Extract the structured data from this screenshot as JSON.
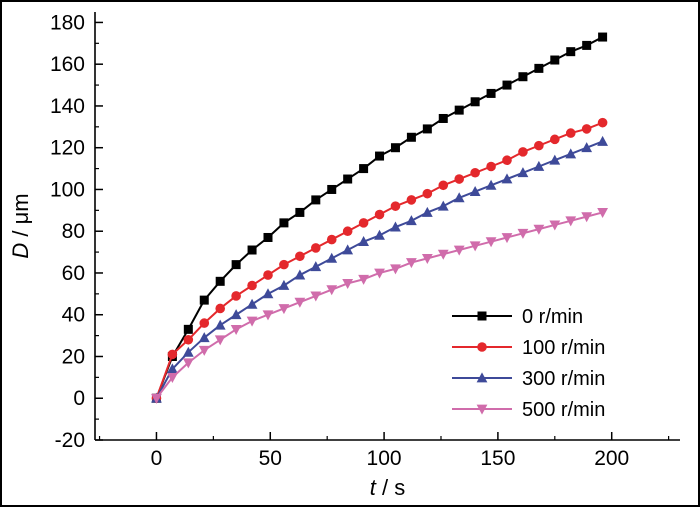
{
  "figure": {
    "background": "#ffffff",
    "border_color": "#000000"
  },
  "chart_data": {
    "type": "line",
    "title": "",
    "xlabel": "t / s",
    "xlabel_var": "t",
    "xlabel_unit": " / s",
    "ylabel": "D / μm",
    "ylabel_var": "D",
    "ylabel_unit": " / μm",
    "xlim": [
      -27,
      230
    ],
    "ylim": [
      -20,
      185
    ],
    "x_ticks": [
      0,
      50,
      100,
      150,
      200
    ],
    "y_ticks": [
      -20,
      0,
      20,
      40,
      60,
      80,
      100,
      120,
      140,
      160,
      180
    ],
    "grid": false,
    "legend_position": "inside-lower-right",
    "x": [
      0,
      7,
      14,
      21,
      28,
      35,
      42,
      49,
      56,
      63,
      70,
      77,
      84,
      91,
      98,
      105,
      112,
      119,
      126,
      133,
      140,
      147,
      154,
      161,
      168,
      175,
      182,
      189,
      196
    ],
    "series": [
      {
        "name": "0 r/min",
        "marker": "square",
        "color": "#000000",
        "values": [
          0,
          20,
          33,
          47,
          56,
          64,
          71,
          77,
          84,
          89,
          95,
          100,
          105,
          110,
          116,
          120,
          125,
          129,
          134,
          138,
          142,
          146,
          150,
          154,
          158,
          162,
          166,
          169,
          173
        ]
      },
      {
        "name": "100 r/min",
        "marker": "circle",
        "color": "#e4282c",
        "values": [
          0,
          21,
          28,
          36,
          43,
          49,
          54,
          59,
          64,
          68,
          72,
          76,
          80,
          84,
          88,
          92,
          95,
          98,
          102,
          105,
          108,
          111,
          114,
          118,
          121,
          124,
          127,
          129,
          132
        ]
      },
      {
        "name": "300 r/min",
        "marker": "triangle-up",
        "color": "#3e4a99",
        "values": [
          0,
          14,
          22,
          29,
          35,
          40,
          45,
          50,
          54,
          59,
          63,
          67,
          71,
          75,
          78,
          82,
          85,
          89,
          92,
          96,
          99,
          102,
          105,
          108,
          111,
          114,
          117,
          120,
          123
        ]
      },
      {
        "name": "500 r/min",
        "marker": "triangle-down",
        "color": "#d06cab",
        "values": [
          0,
          10,
          17,
          23,
          28,
          33,
          37,
          40,
          43,
          46,
          49,
          52,
          55,
          57,
          60,
          62,
          65,
          67,
          69,
          71,
          73,
          75,
          77,
          79,
          81,
          83,
          85,
          87,
          89
        ]
      }
    ]
  }
}
